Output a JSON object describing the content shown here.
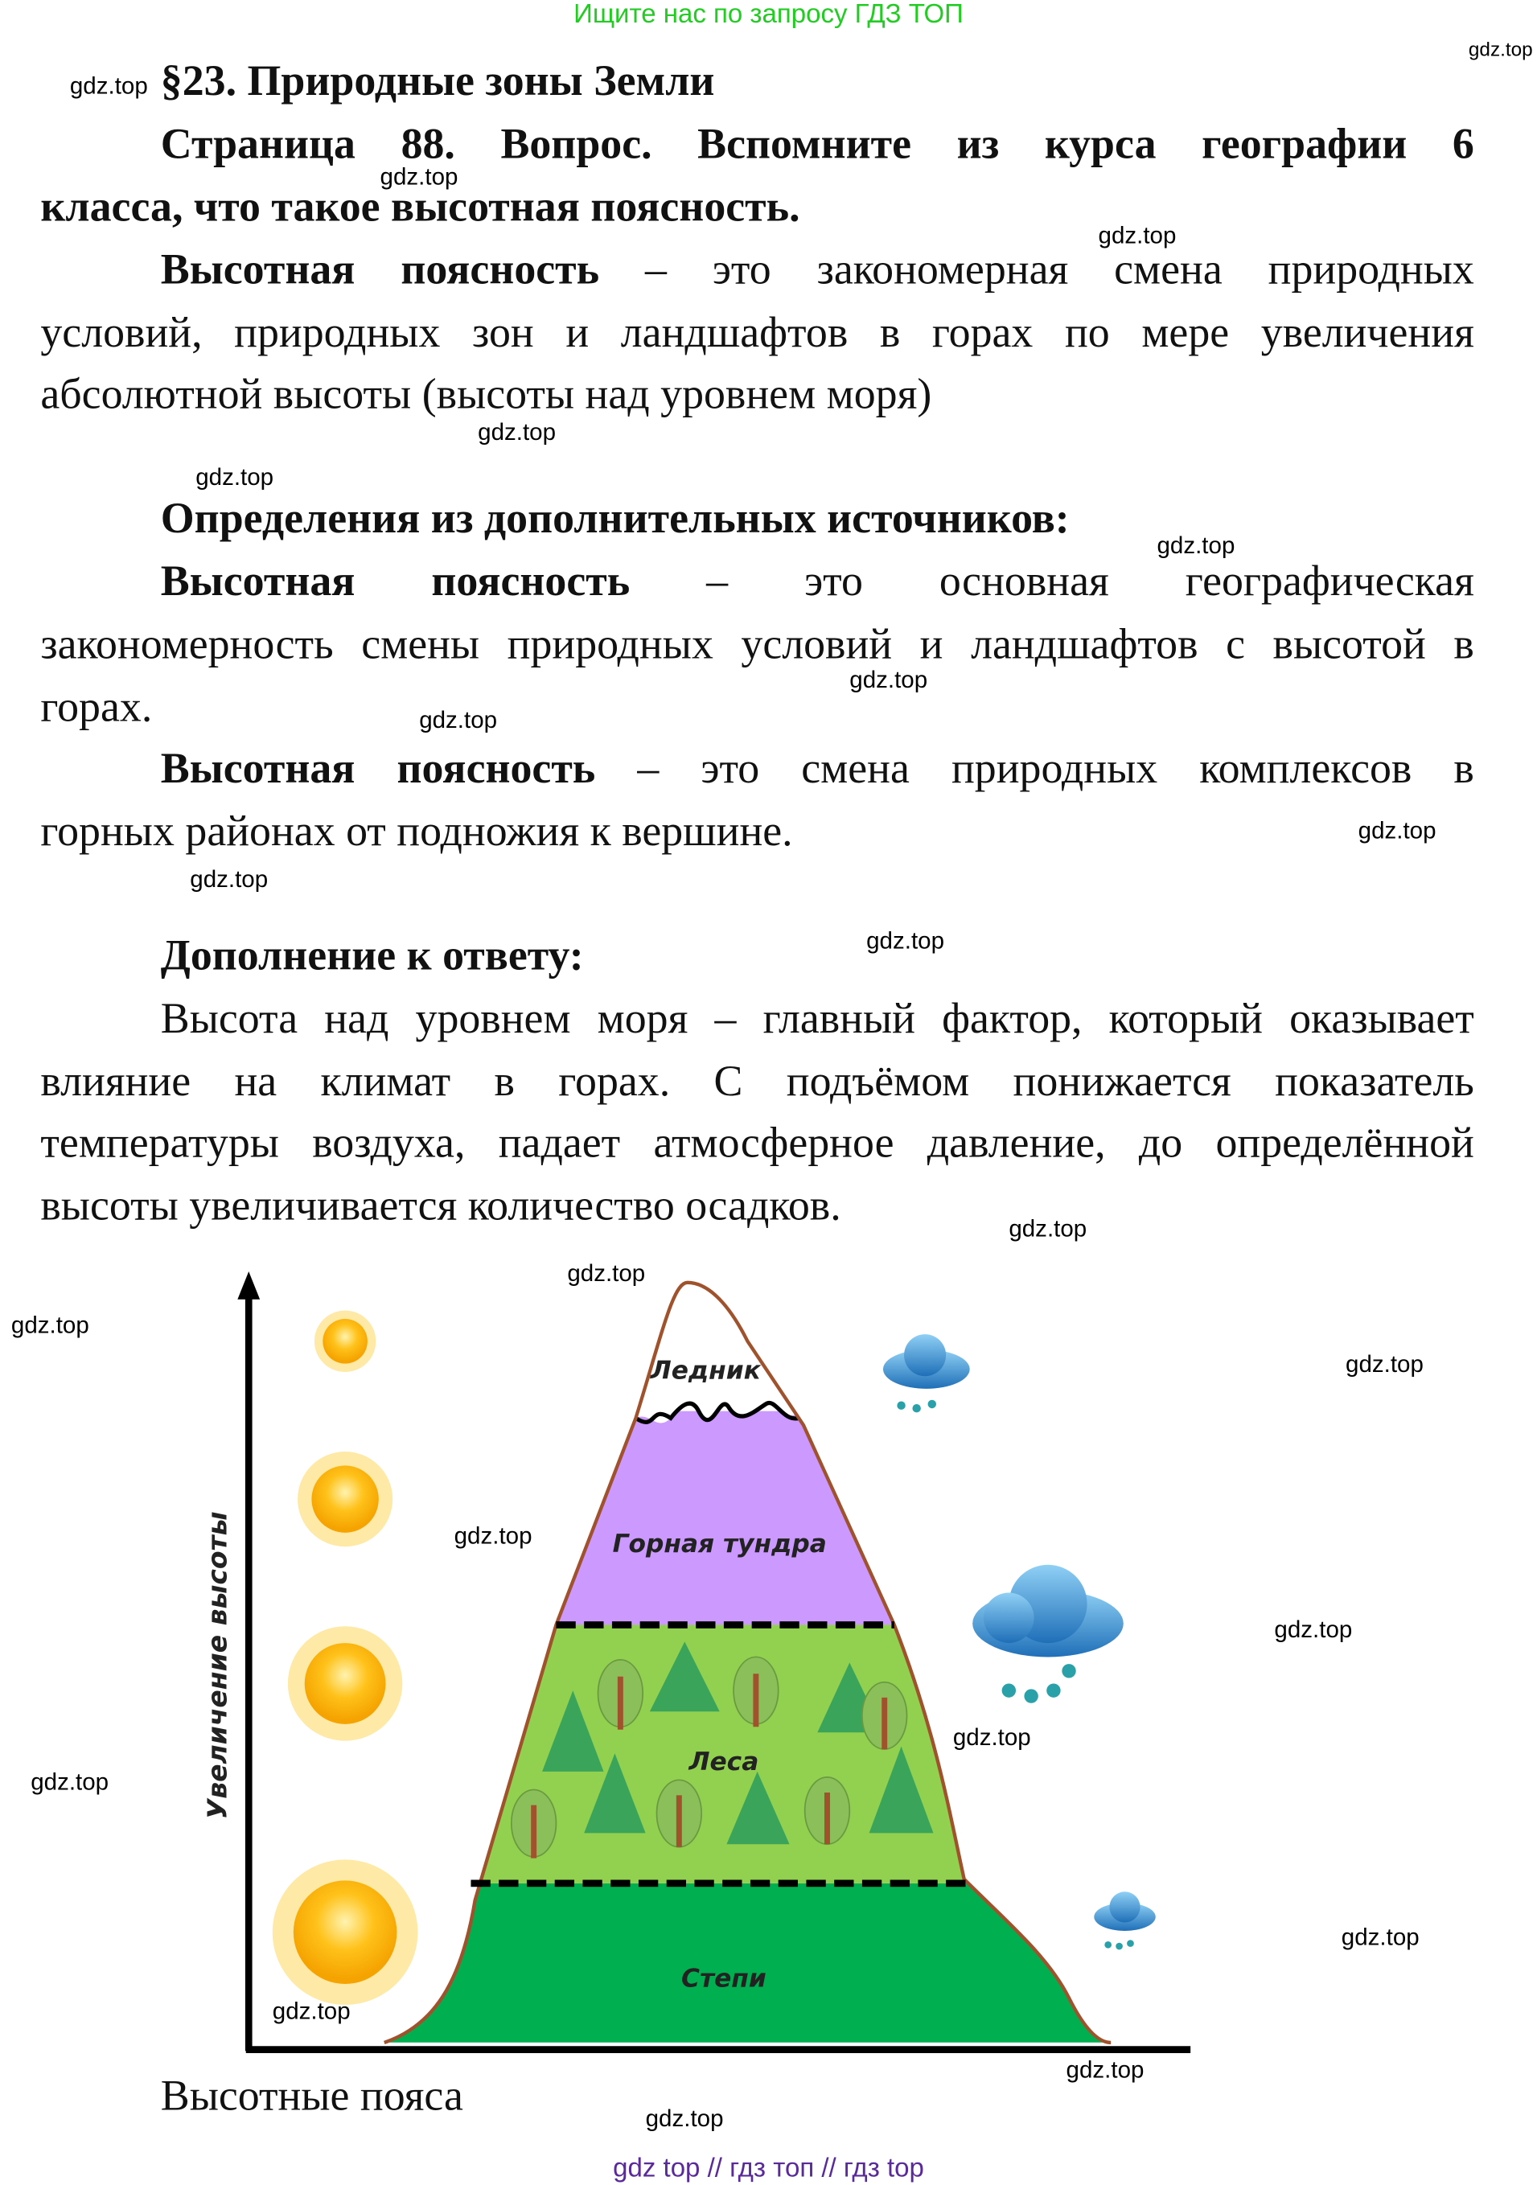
{
  "banner": "Ищите нас по запросу ГДЗ ТОП",
  "watermark": "gdz.top",
  "title": "§23. Природные зоны Земли",
  "question": {
    "line1": "Страница 88. Вопрос. Вспомните из курса географии 6",
    "line2": "класса, что такое высотная поясность."
  },
  "definition": {
    "term": "Высотная поясность",
    "line1_rest": " – это закономерная смена природных",
    "line2": "условий, природных зон и ландшафтов в горах по мере увеличения",
    "line3": "абсолютной высоты (высоты над уровнем моря)"
  },
  "extra": {
    "heading": "Определения из дополнительных источников:",
    "def1_term": "Высотная поясность",
    "def1_line1_rest": " – это основная географическая",
    "def1_line2": "закономерность смены природных условий и ландшафтов с высотой в",
    "def1_line3": "горах.",
    "def2_term": "Высотная поясность",
    "def2_line1_rest": " – это смена природных комплексов в",
    "def2_line2": "горных районах от подножия к вершине."
  },
  "addition": {
    "heading": "Дополнение к ответу:",
    "line1": "Высота над уровнем моря – главный фактор, который оказывает",
    "line2": "влияние на климат в горах. С подъёмом понижается показатель",
    "line3": "температуры воздуха, падает атмосферное давление, до определённой",
    "line4": "высоты увеличивается количество осадков."
  },
  "diagram": {
    "y_axis_label": "Увеличение высоты",
    "zones": [
      "Ледник",
      "Горная тундра",
      "Леса",
      "Степи"
    ],
    "colors": {
      "glacier": "#ffffff",
      "tundra": "#cc99ff",
      "forest": "#92d050",
      "steppe": "#00b050",
      "outline": "#a0522d"
    },
    "icons": [
      "sun-icon",
      "rain-cloud-icon",
      "tree-icon"
    ]
  },
  "caption": "Высотные пояса",
  "footer": "gdz top  //  гдз топ  //  гдз top"
}
